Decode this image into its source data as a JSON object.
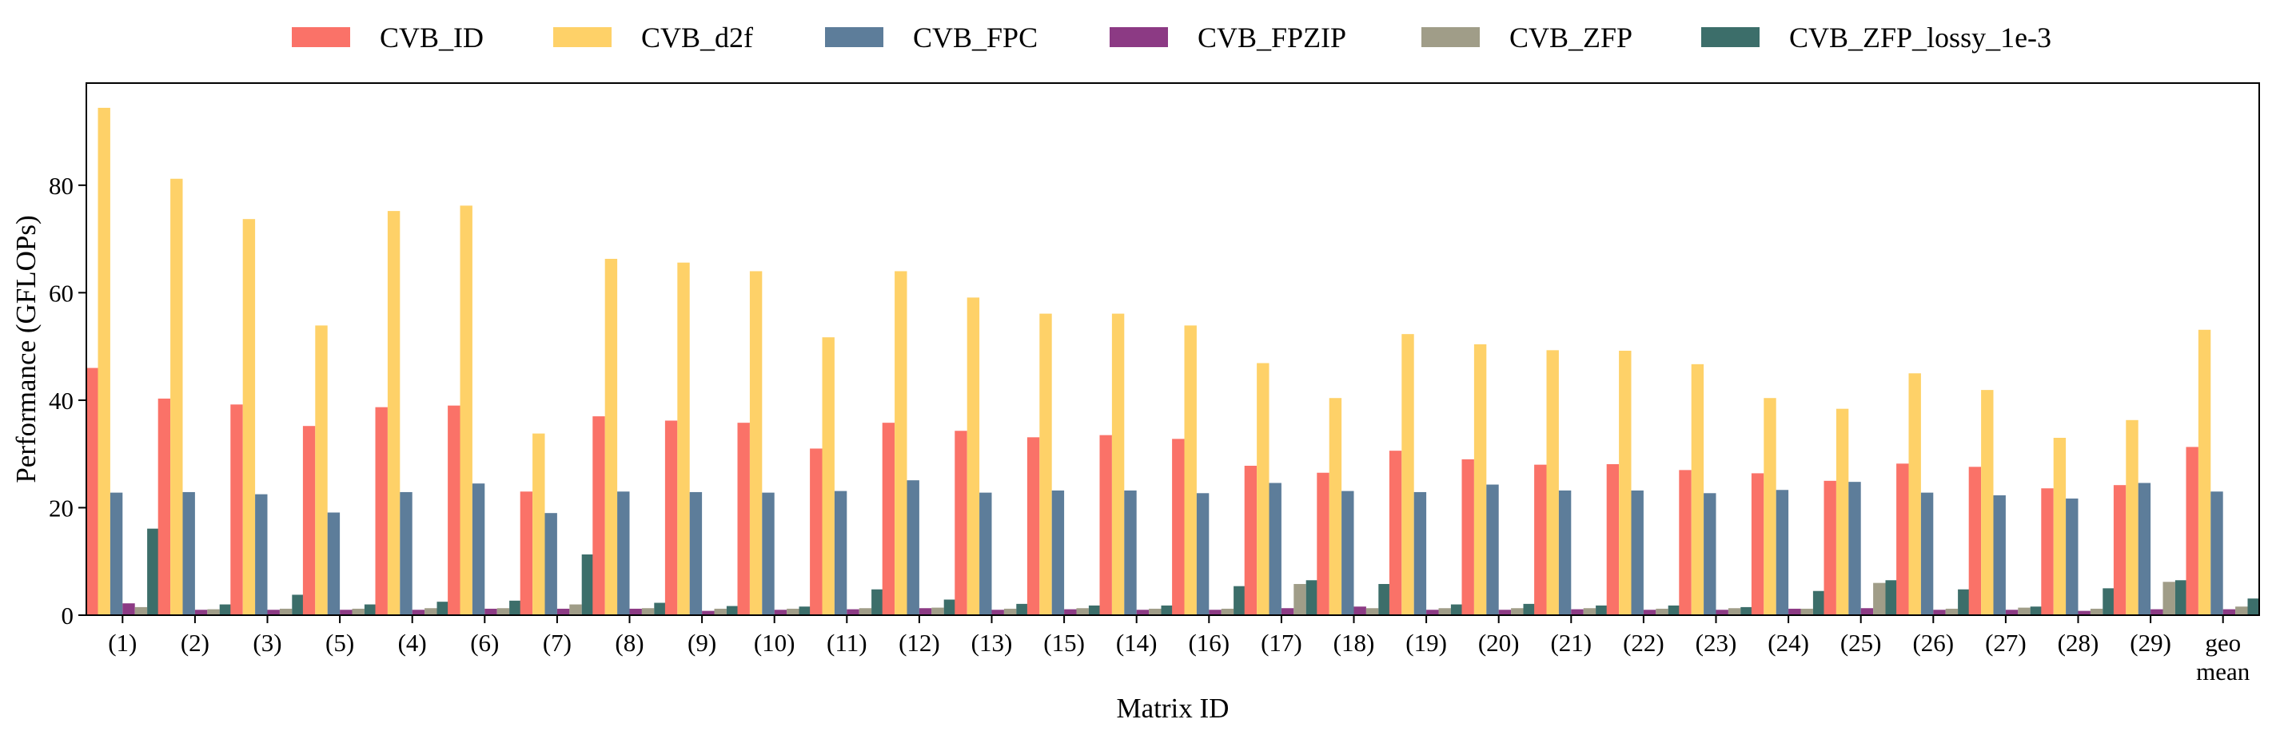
{
  "chart_data": {
    "type": "bar",
    "xlabel": "Matrix ID",
    "ylabel": "Performance (GFLOPs)",
    "ylim": [
      0,
      99
    ],
    "yticks": [
      0,
      20,
      40,
      60,
      80
    ],
    "grid": false,
    "legend_position": "top",
    "categories": [
      "(1)",
      "(2)",
      "(3)",
      "(5)",
      "(4)",
      "(6)",
      "(7)",
      "(8)",
      "(9)",
      "(10)",
      "(11)",
      "(12)",
      "(13)",
      "(15)",
      "(14)",
      "(16)",
      "(17)",
      "(18)",
      "(19)",
      "(20)",
      "(21)",
      "(22)",
      "(23)",
      "(24)",
      "(25)",
      "(26)",
      "(27)",
      "(28)",
      "(29)",
      "geo\nmean"
    ],
    "series": [
      {
        "name": "CVB_ID",
        "color": "#FA7268",
        "values": [
          46,
          40.3,
          39.2,
          35.2,
          38.7,
          39,
          23,
          37,
          36.2,
          35.8,
          31,
          35.8,
          34.3,
          33.1,
          33.5,
          32.8,
          27.8,
          26.5,
          30.6,
          29,
          28,
          28.1,
          27,
          26.4,
          25,
          28.2,
          27.6,
          23.6,
          24.2,
          31.3
        ]
      },
      {
        "name": "CVB_d2f",
        "color": "#FED168",
        "values": [
          94.4,
          81.2,
          73.7,
          53.9,
          75.2,
          76.2,
          33.8,
          66.3,
          65.6,
          64,
          51.7,
          64,
          59.1,
          56.1,
          56.1,
          53.9,
          46.9,
          40.4,
          52.3,
          50.4,
          49.3,
          49.2,
          46.7,
          40.4,
          38.4,
          45,
          41.9,
          33,
          36.3,
          53.1
        ]
      },
      {
        "name": "CVB_FPC",
        "color": "#5D7D9A",
        "values": [
          22.8,
          22.9,
          22.5,
          19.1,
          22.9,
          24.5,
          19,
          23,
          22.9,
          22.8,
          23.1,
          25.1,
          22.8,
          23.2,
          23.2,
          22.7,
          24.6,
          23.1,
          22.9,
          24.3,
          23.2,
          23.2,
          22.7,
          23.3,
          24.8,
          22.8,
          22.3,
          21.7,
          24.6,
          23
        ]
      },
      {
        "name": "CVB_FPZIP",
        "color": "#8C3A84",
        "values": [
          2.2,
          1,
          1,
          1,
          1,
          1.2,
          1.2,
          1.2,
          0.8,
          1,
          1.1,
          1.3,
          1,
          1.1,
          1,
          1,
          1.3,
          1.6,
          1,
          1,
          1.1,
          1,
          1,
          1.2,
          1.3,
          1,
          1,
          0.8,
          1.1,
          1.1
        ]
      },
      {
        "name": "CVB_ZFP",
        "color": "#A09D88",
        "values": [
          1.5,
          1.1,
          1.2,
          1.2,
          1.3,
          1.3,
          2,
          1.3,
          1.2,
          1.2,
          1.3,
          1.4,
          1.2,
          1.3,
          1.2,
          1.2,
          5.8,
          1.3,
          1.3,
          1.3,
          1.3,
          1.2,
          1.3,
          1.2,
          6,
          1.2,
          1.4,
          1.2,
          6.2,
          1.6
        ]
      },
      {
        "name": "CVB_ZFP_lossy_1e-3",
        "color": "#3C6E6A",
        "values": [
          16.1,
          2,
          3.8,
          2,
          2.5,
          2.7,
          11.3,
          2.3,
          1.7,
          1.6,
          4.8,
          2.9,
          2.1,
          1.8,
          1.8,
          5.4,
          6.5,
          5.8,
          2,
          2.1,
          1.8,
          1.8,
          1.5,
          4.5,
          6.5,
          4.8,
          1.6,
          5,
          6.5,
          3.1
        ]
      }
    ]
  }
}
